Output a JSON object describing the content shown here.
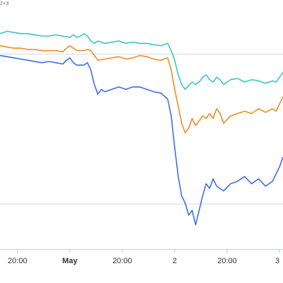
{
  "corner_label": "2×3",
  "chart_data": {
    "type": "line",
    "title": "",
    "xlabel": "",
    "ylabel": "",
    "x_ticks": [
      {
        "label": "20:00",
        "bold": false
      },
      {
        "label": "May",
        "bold": true
      },
      {
        "label": "20:00",
        "bold": false
      },
      {
        "label": "2",
        "bold": false
      },
      {
        "label": "20:00",
        "bold": false
      },
      {
        "label": "3",
        "bold": false
      }
    ],
    "x_tick_positions": [
      0.5,
      2,
      3.5,
      5,
      6.5,
      8
    ],
    "xlim": [
      0,
      8.1
    ],
    "ylim": [
      0,
      100
    ],
    "grid": {
      "horizontal": true,
      "vertical": false
    },
    "series": [
      {
        "color": "#3bc6c6",
        "points": [
          [
            0,
            89
          ],
          [
            0.2,
            90
          ],
          [
            0.4,
            89.5
          ],
          [
            0.6,
            89
          ],
          [
            0.8,
            89
          ],
          [
            1,
            88.5
          ],
          [
            1.2,
            88
          ],
          [
            1.4,
            88
          ],
          [
            1.6,
            88.5
          ],
          [
            1.8,
            88
          ],
          [
            2,
            87.5
          ],
          [
            2.1,
            88.5
          ],
          [
            2.2,
            87.5
          ],
          [
            2.3,
            88
          ],
          [
            2.4,
            89
          ],
          [
            2.5,
            88
          ],
          [
            2.6,
            86
          ],
          [
            2.7,
            85
          ],
          [
            2.8,
            86
          ],
          [
            3,
            85
          ],
          [
            3.2,
            85.5
          ],
          [
            3.4,
            86
          ],
          [
            3.6,
            85
          ],
          [
            3.8,
            85.5
          ],
          [
            4,
            85
          ],
          [
            4.2,
            85
          ],
          [
            4.4,
            84.5
          ],
          [
            4.6,
            84
          ],
          [
            4.8,
            85
          ],
          [
            4.9,
            82
          ],
          [
            5,
            78
          ],
          [
            5.1,
            72
          ],
          [
            5.2,
            68
          ],
          [
            5.3,
            66
          ],
          [
            5.4,
            67.5
          ],
          [
            5.5,
            69
          ],
          [
            5.6,
            68
          ],
          [
            5.7,
            69
          ],
          [
            5.8,
            71
          ],
          [
            5.9,
            72
          ],
          [
            6,
            70
          ],
          [
            6.1,
            69
          ],
          [
            6.2,
            71
          ],
          [
            6.3,
            70
          ],
          [
            6.4,
            68
          ],
          [
            6.6,
            70
          ],
          [
            6.8,
            70.5
          ],
          [
            7,
            69
          ],
          [
            7.2,
            70
          ],
          [
            7.4,
            69.5
          ],
          [
            7.6,
            68.5
          ],
          [
            7.8,
            69.5
          ],
          [
            7.9,
            69
          ],
          [
            8,
            71
          ],
          [
            8.1,
            73
          ]
        ]
      },
      {
        "color": "#f28c28",
        "points": [
          [
            0,
            84
          ],
          [
            0.2,
            83.5
          ],
          [
            0.4,
            83
          ],
          [
            0.6,
            83
          ],
          [
            0.8,
            82.5
          ],
          [
            1,
            82.5
          ],
          [
            1.2,
            82
          ],
          [
            1.4,
            82
          ],
          [
            1.6,
            82
          ],
          [
            1.8,
            81.5
          ],
          [
            1.9,
            83
          ],
          [
            2,
            84
          ],
          [
            2.1,
            83
          ],
          [
            2.2,
            82
          ],
          [
            2.4,
            82
          ],
          [
            2.5,
            82.5
          ],
          [
            2.6,
            82
          ],
          [
            2.7,
            80
          ],
          [
            2.8,
            78
          ],
          [
            3,
            78.5
          ],
          [
            3.2,
            79
          ],
          [
            3.4,
            79.5
          ],
          [
            3.6,
            78.5
          ],
          [
            3.8,
            79
          ],
          [
            4,
            80
          ],
          [
            4.2,
            79.5
          ],
          [
            4.4,
            78.5
          ],
          [
            4.6,
            78
          ],
          [
            4.8,
            79
          ],
          [
            4.9,
            74
          ],
          [
            5,
            66
          ],
          [
            5.1,
            59
          ],
          [
            5.2,
            52
          ],
          [
            5.3,
            48
          ],
          [
            5.4,
            50
          ],
          [
            5.5,
            54
          ],
          [
            5.6,
            51
          ],
          [
            5.7,
            53
          ],
          [
            5.8,
            55
          ],
          [
            5.9,
            54
          ],
          [
            6,
            56
          ],
          [
            6.1,
            54
          ],
          [
            6.2,
            58
          ],
          [
            6.3,
            56
          ],
          [
            6.4,
            52
          ],
          [
            6.6,
            55
          ],
          [
            6.8,
            56
          ],
          [
            7,
            57
          ],
          [
            7.2,
            56
          ],
          [
            7.4,
            58
          ],
          [
            7.6,
            56.5
          ],
          [
            7.8,
            58
          ],
          [
            7.9,
            57
          ],
          [
            8,
            60
          ],
          [
            8.1,
            63
          ]
        ]
      },
      {
        "color": "#3d6fe8",
        "points": [
          [
            0,
            80
          ],
          [
            0.2,
            79.5
          ],
          [
            0.4,
            79
          ],
          [
            0.6,
            78.5
          ],
          [
            0.8,
            78
          ],
          [
            1,
            77.5
          ],
          [
            1.2,
            77
          ],
          [
            1.4,
            77.5
          ],
          [
            1.6,
            77
          ],
          [
            1.8,
            76.5
          ],
          [
            1.9,
            78
          ],
          [
            2,
            79
          ],
          [
            2.1,
            77
          ],
          [
            2.2,
            76
          ],
          [
            2.4,
            76
          ],
          [
            2.5,
            77
          ],
          [
            2.6,
            74
          ],
          [
            2.7,
            68
          ],
          [
            2.8,
            64
          ],
          [
            2.9,
            66
          ],
          [
            3,
            65
          ],
          [
            3.2,
            66
          ],
          [
            3.4,
            67
          ],
          [
            3.6,
            66
          ],
          [
            3.8,
            67
          ],
          [
            4,
            67
          ],
          [
            4.2,
            66
          ],
          [
            4.4,
            65
          ],
          [
            4.6,
            64.5
          ],
          [
            4.8,
            62
          ],
          [
            4.9,
            55
          ],
          [
            5,
            42
          ],
          [
            5.1,
            30
          ],
          [
            5.2,
            22
          ],
          [
            5.3,
            19
          ],
          [
            5.4,
            14
          ],
          [
            5.5,
            16
          ],
          [
            5.6,
            10
          ],
          [
            5.7,
            16
          ],
          [
            5.8,
            22
          ],
          [
            5.9,
            27
          ],
          [
            6,
            25
          ],
          [
            6.1,
            29
          ],
          [
            6.2,
            26
          ],
          [
            6.4,
            24
          ],
          [
            6.6,
            27
          ],
          [
            6.8,
            28
          ],
          [
            7,
            30
          ],
          [
            7.2,
            27
          ],
          [
            7.4,
            29
          ],
          [
            7.6,
            26
          ],
          [
            7.8,
            28
          ],
          [
            7.9,
            31
          ],
          [
            8,
            34
          ],
          [
            8.1,
            38
          ]
        ]
      }
    ]
  }
}
